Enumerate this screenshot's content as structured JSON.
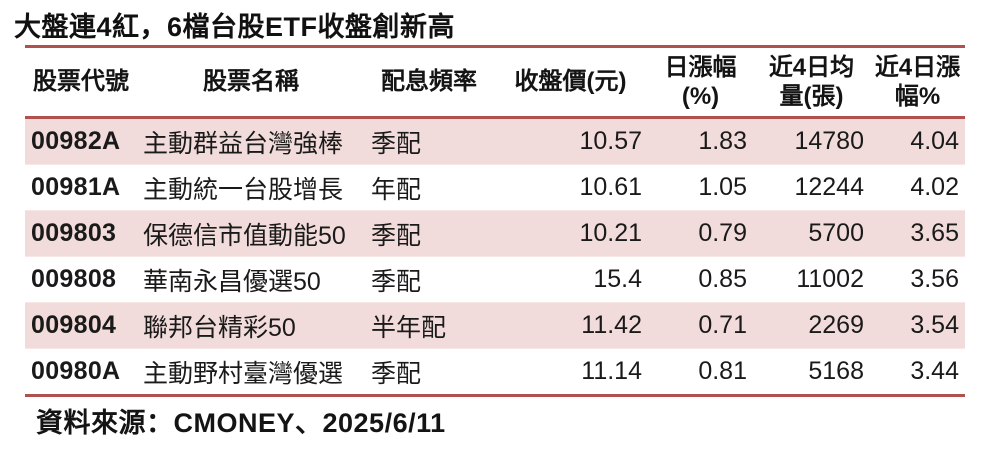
{
  "title": "大盤連4紅，6檔台股ETF收盤創新高",
  "colors": {
    "accent_line": "#b0514d",
    "band_pink": "#f2dcdb",
    "text": "#1a1a1a",
    "background": "#ffffff"
  },
  "table": {
    "column_keys": [
      "code",
      "name",
      "dividend-frequency",
      "close-price",
      "daily-change",
      "avg-volume-4d",
      "change-4d"
    ],
    "columns": [
      {
        "label": "股票代號"
      },
      {
        "label": "股票名稱"
      },
      {
        "label": "配息頻率"
      },
      {
        "label": "收盤價(元)"
      },
      {
        "label": "日漲幅\n(%)"
      },
      {
        "label": "近4日均\n量(張)"
      },
      {
        "label": "近4日漲\n幅%"
      }
    ],
    "rows": [
      [
        "00982A",
        "主動群益台灣強棒",
        "季配",
        "10.57",
        "1.83",
        "14780",
        "4.04"
      ],
      [
        "00981A",
        "主動統一台股增長",
        "年配",
        "10.61",
        "1.05",
        "12244",
        "4.02"
      ],
      [
        "009803",
        "保德信市值動能50",
        "季配",
        "10.21",
        "0.79",
        "5700",
        "3.65"
      ],
      [
        "009808",
        "華南永昌優選50",
        "季配",
        "15.4",
        "0.85",
        "11002",
        "3.56"
      ],
      [
        "009804",
        "聯邦台精彩50",
        "半年配",
        "11.42",
        "0.71",
        "2269",
        "3.54"
      ],
      [
        "00980A",
        "主動野村臺灣優選",
        "季配",
        "11.14",
        "0.81",
        "5168",
        "3.44"
      ]
    ]
  },
  "footer": {
    "source_text": "資料來源：CMONEY、2025/6/11"
  },
  "chart_data": {
    "type": "table",
    "title": "大盤連4紅，6檔台股ETF收盤創新高",
    "columns": [
      "股票代號",
      "股票名稱",
      "配息頻率",
      "收盤價(元)",
      "日漲幅(%)",
      "近4日均量(張)",
      "近4日漲幅%"
    ],
    "rows": [
      [
        "00982A",
        "主動群益台灣強棒",
        "季配",
        10.57,
        1.83,
        14780,
        4.04
      ],
      [
        "00981A",
        "主動統一台股增長",
        "年配",
        10.61,
        1.05,
        12244,
        4.02
      ],
      [
        "009803",
        "保德信市值動能50",
        "季配",
        10.21,
        0.79,
        5700,
        3.65
      ],
      [
        "009808",
        "華南永昌優選50",
        "季配",
        15.4,
        0.85,
        11002,
        3.56
      ],
      [
        "009804",
        "聯邦台精彩50",
        "半年配",
        11.42,
        0.71,
        2269,
        3.54
      ],
      [
        "00980A",
        "主動野村臺灣優選",
        "季配",
        11.14,
        0.81,
        5168,
        3.44
      ]
    ],
    "source": "資料來源：CMONEY、2025/6/11",
    "banded_rows": true,
    "band_color": "#f2dcdb",
    "border_color": "#b0514d"
  }
}
